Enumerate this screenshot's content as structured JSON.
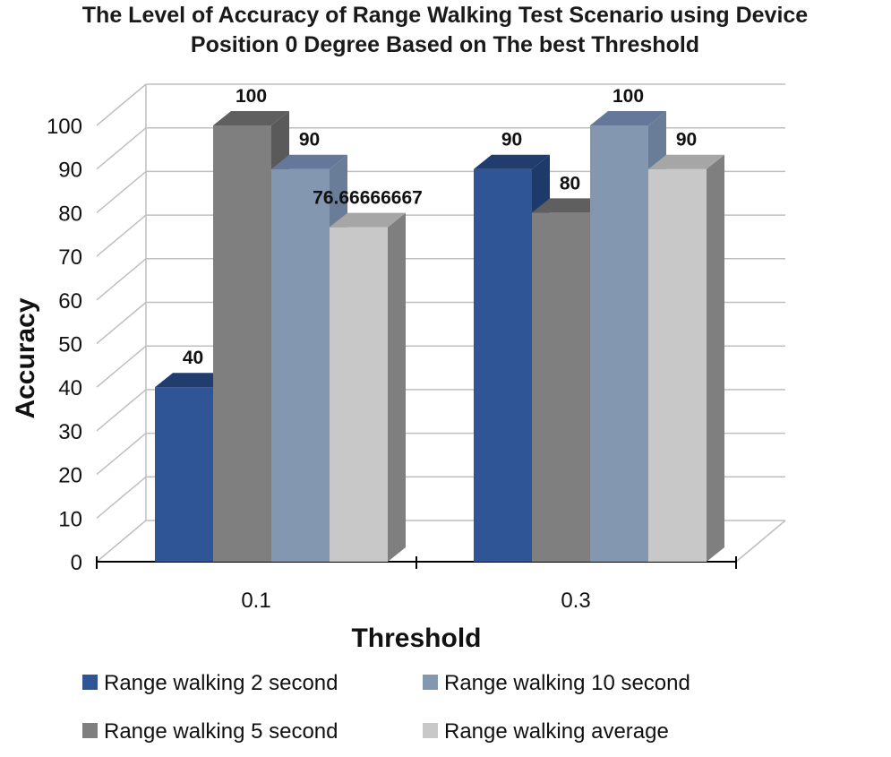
{
  "chart_data": {
    "type": "bar",
    "title_lines": [
      "The Level of Accuracy of Range Walking Test Scenario using Device",
      "Position 0 Degree Based on The best Threshold"
    ],
    "xlabel": "Threshold",
    "ylabel": "Accuracy",
    "categories": [
      "0.1",
      "0.3"
    ],
    "ylim": [
      0,
      100
    ],
    "yticks": [
      0,
      10,
      20,
      30,
      40,
      50,
      60,
      70,
      80,
      90,
      100
    ],
    "grid": true,
    "legend_position": "bottom",
    "series": [
      {
        "name": "Range walking 2 second",
        "values": [
          40,
          90
        ],
        "labels": [
          "40",
          "90"
        ],
        "color": "#2f5597",
        "top": "#203d6e",
        "side": "#1d3a6b"
      },
      {
        "name": "Range walking 5 second",
        "values": [
          100,
          80
        ],
        "labels": [
          "100",
          "80"
        ],
        "color": "#7f7f7f",
        "top": "#5f5f5f",
        "side": "#5a5a5a"
      },
      {
        "name": "Range walking 10 second",
        "values": [
          90,
          100
        ],
        "labels": [
          "90",
          "100"
        ],
        "color": "#8497b0",
        "top": "#65789a",
        "side": "#6a7d98"
      },
      {
        "name": "Range walking average",
        "values": [
          76.66666667,
          90
        ],
        "labels": [
          "76.66666667",
          "90"
        ],
        "color": "#c8c8c8",
        "top": "#a6a6a6",
        "side": "#7f7f7f"
      }
    ]
  }
}
